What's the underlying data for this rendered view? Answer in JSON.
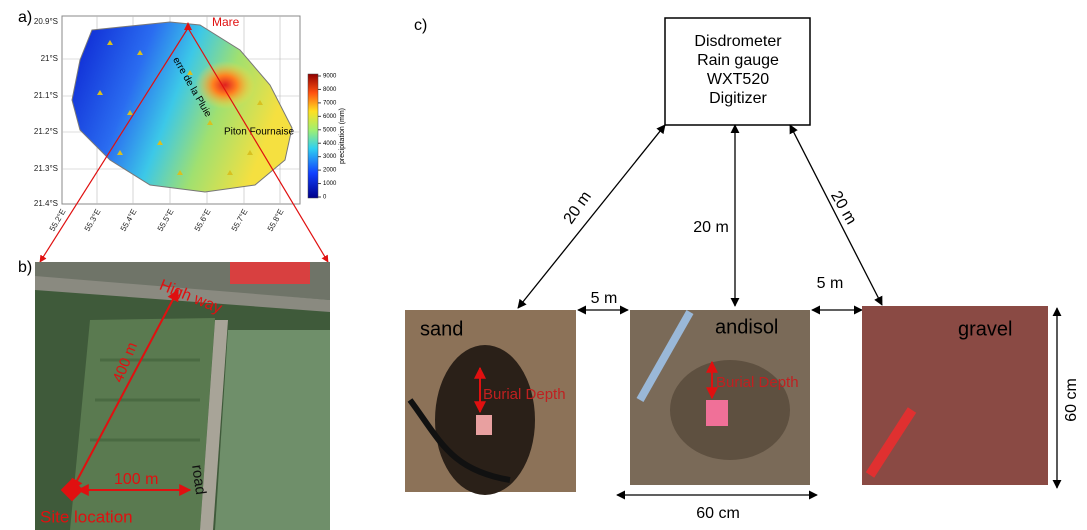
{
  "panel_a": {
    "label": "a)",
    "lat_ticks": [
      "20.9°S",
      "21°S",
      "21.1°S",
      "21.2°S",
      "21.3°S",
      "21.4°S"
    ],
    "lon_ticks": [
      "55.2°E",
      "55.3°E",
      "55.4°E",
      "55.5°E",
      "55.6°E",
      "55.7°E",
      "55.8°E"
    ],
    "places": [
      "Mare",
      "erre de la Pluie",
      "Piton Fournaise"
    ],
    "colorbar": {
      "label": "precipitation (mm)",
      "ticks": [
        0,
        1000,
        2000,
        3000,
        4000,
        5000,
        6000,
        7000,
        8000,
        9000
      ]
    }
  },
  "panel_b": {
    "label": "b)",
    "texts": [
      "High way",
      "400 m",
      "100 m",
      "road",
      "Site location"
    ]
  },
  "panel_c": {
    "label": "c)",
    "instruments": [
      "Disdrometer",
      "Rain gauge",
      "WXT520",
      "Digitizer"
    ],
    "distances": [
      "20 m",
      "20 m",
      "20 m",
      "5 m",
      "5 m"
    ],
    "soils": [
      "sand",
      "andisol",
      "gravel"
    ],
    "burial": [
      "Burial Depth",
      "Burial Depth"
    ],
    "sizes": [
      "60 cm",
      "60 cm"
    ]
  }
}
